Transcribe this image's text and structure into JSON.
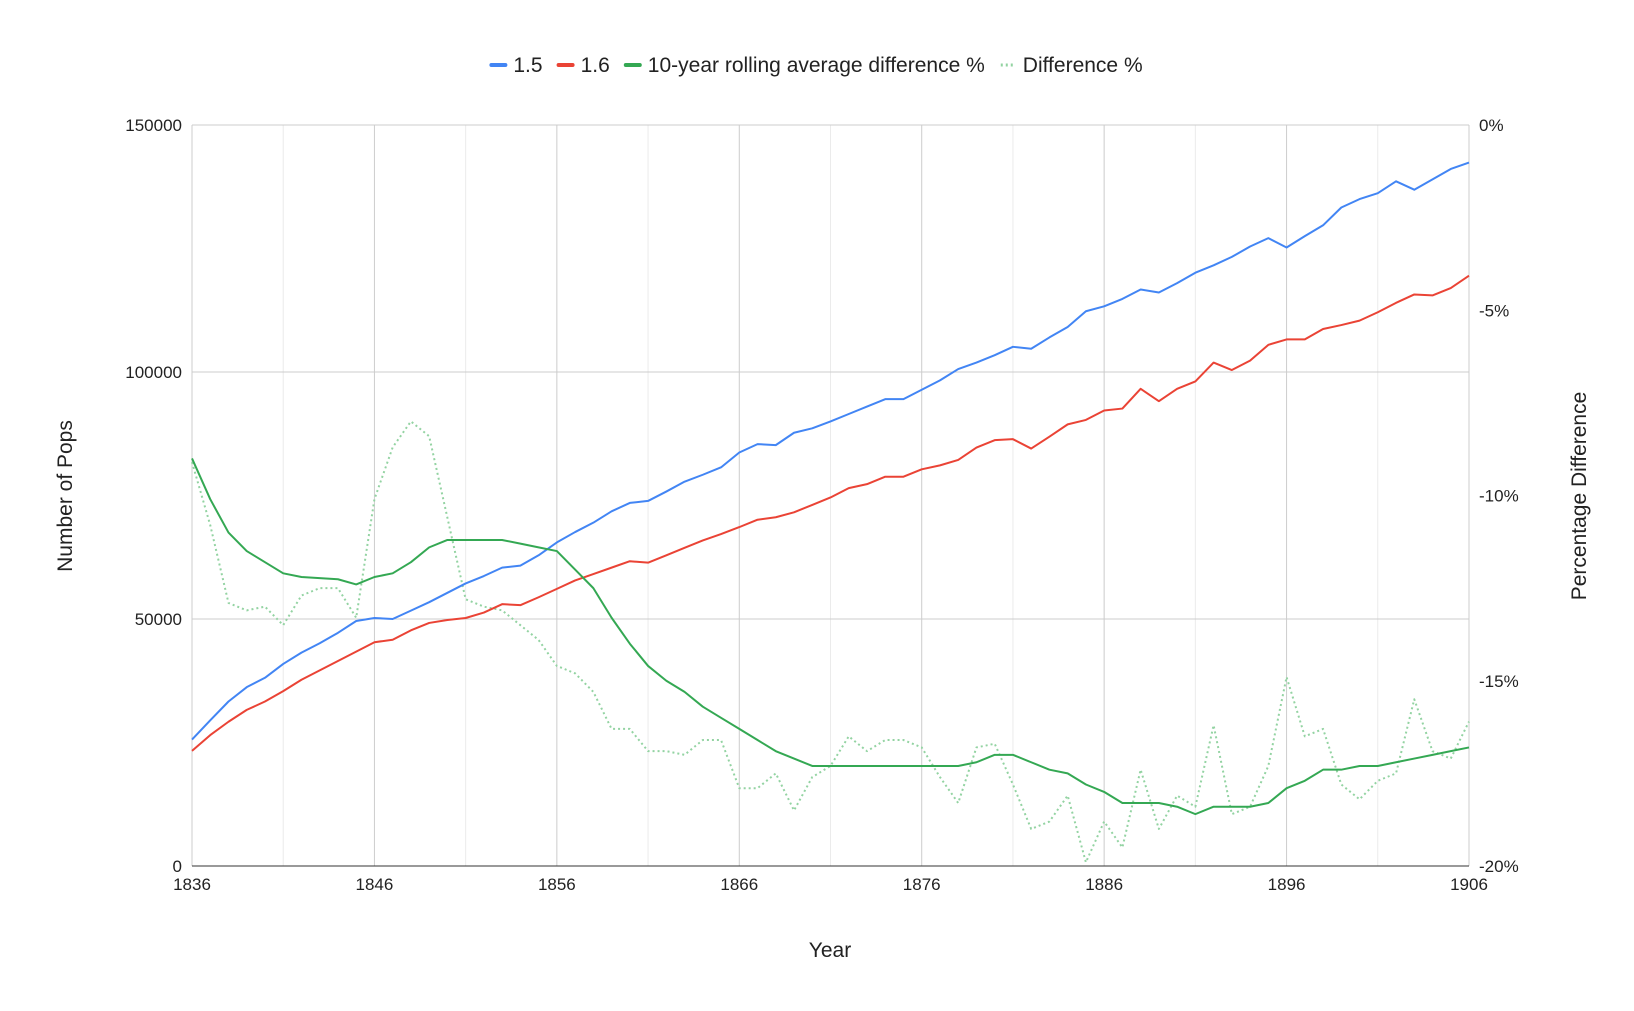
{
  "chart_data": {
    "type": "line",
    "x_label": "Year",
    "y_label": "Number of Pops",
    "y2_label": "Percentage Difference",
    "legend": "top",
    "grid": true,
    "x": [
      1836,
      1837,
      1838,
      1839,
      1840,
      1841,
      1842,
      1843,
      1844,
      1845,
      1846,
      1847,
      1848,
      1849,
      1850,
      1851,
      1852,
      1853,
      1854,
      1855,
      1856,
      1857,
      1858,
      1859,
      1860,
      1861,
      1862,
      1863,
      1864,
      1865,
      1866,
      1867,
      1868,
      1869,
      1870,
      1871,
      1872,
      1873,
      1874,
      1875,
      1876,
      1877,
      1878,
      1879,
      1880,
      1881,
      1882,
      1883,
      1884,
      1885,
      1886,
      1887,
      1888,
      1889,
      1890,
      1891,
      1892,
      1893,
      1894,
      1895,
      1896,
      1897,
      1898,
      1899,
      1900,
      1901,
      1902,
      1903,
      1904,
      1905,
      1906
    ],
    "xlim": [
      1836,
      1906
    ],
    "xticks": [
      1836,
      1846,
      1856,
      1866,
      1876,
      1886,
      1896,
      1906
    ],
    "xminorticks": [
      1841,
      1851,
      1861,
      1871,
      1881,
      1891,
      1901
    ],
    "ylim": [
      0,
      150000
    ],
    "yticks": [
      0,
      50000,
      100000,
      150000
    ],
    "y2lim": [
      -20,
      0
    ],
    "y2ticks": [
      {
        "value": 0,
        "label": "0%"
      },
      {
        "value": -5,
        "label": "-5%"
      },
      {
        "value": -10,
        "label": "-10%"
      },
      {
        "value": -15,
        "label": "-15%"
      },
      {
        "value": -20,
        "label": "-20%"
      }
    ],
    "series": [
      {
        "name": "1.5",
        "color": "#4285f4",
        "values": [
          25600,
          29500,
          33300,
          36200,
          38100,
          40900,
          43200,
          45100,
          47200,
          49600,
          50200,
          50000,
          51700,
          53400,
          55300,
          57200,
          58700,
          60400,
          60800,
          62900,
          65500,
          67600,
          69500,
          71800,
          73500,
          73900,
          75800,
          77800,
          79200,
          80700,
          83700,
          85400,
          85200,
          87700,
          88600,
          90000,
          91500,
          93000,
          94500,
          94500,
          96400,
          98300,
          100600,
          101900,
          103400,
          105100,
          104700,
          107000,
          109100,
          112300,
          113300,
          114800,
          116700,
          116100,
          118000,
          120100,
          121600,
          123300,
          125400,
          127100,
          125200,
          127500,
          129700,
          133300,
          135000,
          136200,
          138600,
          136900,
          139000,
          141100,
          142400
        ]
      },
      {
        "name": "1.6",
        "color": "#ea4335",
        "values": [
          23300,
          26500,
          29200,
          31600,
          33300,
          35400,
          37700,
          39600,
          41500,
          43400,
          45300,
          45800,
          47700,
          49200,
          49800,
          50200,
          51300,
          53000,
          52800,
          54400,
          56100,
          57800,
          59100,
          60400,
          61700,
          61400,
          62900,
          64400,
          65900,
          67200,
          68600,
          70100,
          70600,
          71600,
          73100,
          74600,
          76500,
          77300,
          78800,
          78800,
          80300,
          81100,
          82200,
          84700,
          86200,
          86400,
          84500,
          86900,
          89400,
          90300,
          92200,
          92600,
          96600,
          94100,
          96600,
          98100,
          101900,
          100400,
          102300,
          105500,
          106600,
          106600,
          108700,
          109500,
          110400,
          112100,
          114000,
          115700,
          115500,
          117000,
          119500
        ]
      },
      {
        "name": "10-year rolling average difference %",
        "color": "#34a853",
        "axis": "y2",
        "values": [
          -9.0,
          -10.1,
          -11.0,
          -11.5,
          -11.8,
          -12.1,
          -12.2,
          -12.23,
          -12.26,
          -12.4,
          -12.2,
          -12.1,
          -11.8,
          -11.4,
          -11.2,
          -11.2,
          -11.2,
          -11.2,
          -11.3,
          -11.4,
          -11.5,
          -12.0,
          -12.5,
          -13.3,
          -14.0,
          -14.6,
          -15.0,
          -15.3,
          -15.7,
          -16.0,
          -16.3,
          -16.6,
          -16.9,
          -17.1,
          -17.3,
          -17.3,
          -17.3,
          -17.3,
          -17.3,
          -17.3,
          -17.3,
          -17.3,
          -17.3,
          -17.2,
          -17.0,
          -17.0,
          -17.2,
          -17.4,
          -17.5,
          -17.8,
          -18.0,
          -18.3,
          -18.3,
          -18.3,
          -18.4,
          -18.6,
          -18.4,
          -18.4,
          -18.4,
          -18.3,
          -17.9,
          -17.7,
          -17.4,
          -17.4,
          -17.3,
          -17.3,
          -17.2,
          -17.1,
          -17.0,
          -16.9,
          -16.8
        ]
      },
      {
        "name": "Difference %",
        "color": "#93d3a2",
        "axis": "y2",
        "dotted": true,
        "values": [
          -9.1,
          -10.8,
          -12.9,
          -13.1,
          -13.0,
          -13.5,
          -12.7,
          -12.5,
          -12.5,
          -13.3,
          -10.1,
          -8.7,
          -8.0,
          -8.4,
          -10.6,
          -12.8,
          -13.0,
          -13.1,
          -13.5,
          -13.9,
          -14.6,
          -14.8,
          -15.3,
          -16.3,
          -16.3,
          -16.9,
          -16.9,
          -17.0,
          -16.6,
          -16.6,
          -17.9,
          -17.9,
          -17.5,
          -18.5,
          -17.6,
          -17.3,
          -16.5,
          -16.9,
          -16.6,
          -16.6,
          -16.8,
          -17.6,
          -18.3,
          -16.8,
          -16.7,
          -17.8,
          -19.0,
          -18.8,
          -18.1,
          -19.9,
          -18.8,
          -19.5,
          -17.4,
          -19.0,
          -18.1,
          -18.4,
          -16.2,
          -18.6,
          -18.4,
          -17.3,
          -14.9,
          -16.5,
          -16.3,
          -17.8,
          -18.2,
          -17.7,
          -17.5,
          -15.5,
          -16.9,
          -17.1,
          -16.1
        ]
      }
    ]
  }
}
